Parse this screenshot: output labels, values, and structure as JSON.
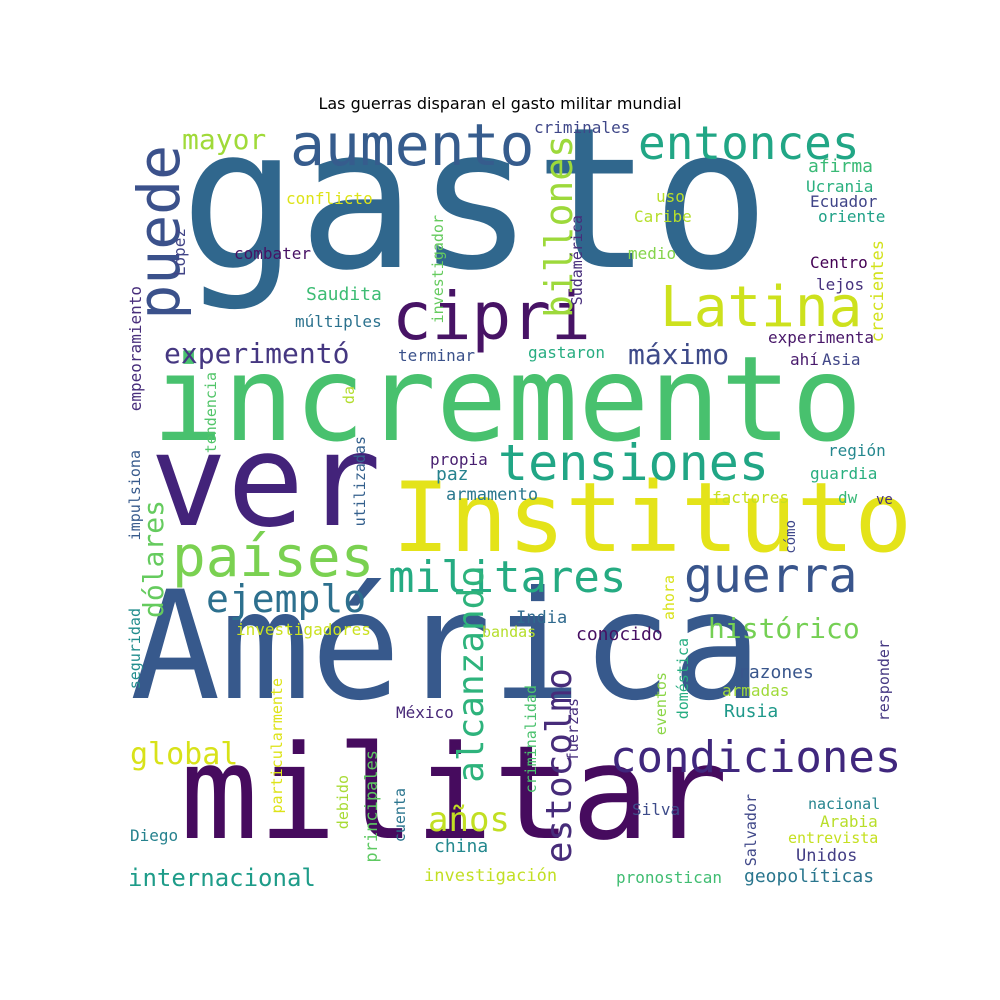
{
  "figure": {
    "title": "Las guerras disparan el gasto militar mundial"
  },
  "cloud": {
    "words": [
      {
        "text": "gasto",
        "color": "#30678d"
      },
      {
        "text": "incremento",
        "color": "#48c16e"
      },
      {
        "text": "ver",
        "color": "#43237a"
      },
      {
        "text": "Instituto",
        "color": "#e4e319"
      },
      {
        "text": "América",
        "color": "#37598c"
      },
      {
        "text": "militar",
        "color": "#460b5e"
      },
      {
        "text": "aumento",
        "color": "#365c8d"
      },
      {
        "text": "entonces",
        "color": "#21a685"
      },
      {
        "text": "cipri",
        "color": "#471365"
      },
      {
        "text": "Latina",
        "color": "#cde11d"
      },
      {
        "text": "tensiones",
        "color": "#21a685"
      },
      {
        "text": "países",
        "color": "#7ad151"
      },
      {
        "text": "militares",
        "color": "#25ab82"
      },
      {
        "text": "guerra",
        "color": "#39558c"
      },
      {
        "text": "condiciones",
        "color": "#40277d"
      },
      {
        "text": "puede",
        "color": "#3b518b"
      },
      {
        "text": "billones",
        "color": "#9dd93b"
      },
      {
        "text": "ejemplo",
        "color": "#2d708e"
      },
      {
        "text": "experimentó",
        "color": "#453781"
      },
      {
        "text": "máximo",
        "color": "#3e4a89"
      },
      {
        "text": "histórico",
        "color": "#75d054"
      },
      {
        "text": "alcanzando",
        "color": "#2eb37c"
      },
      {
        "text": "estocolmo",
        "color": "#472c7a"
      },
      {
        "text": "global",
        "color": "#d8e219"
      },
      {
        "text": "internacional",
        "color": "#1e9c89"
      },
      {
        "text": "años",
        "color": "#c2df23"
      },
      {
        "text": "mayor",
        "color": "#a0da39"
      },
      {
        "text": "dólares",
        "color": "#65cb5e"
      },
      {
        "text": "criminales",
        "color": "#3f4788"
      },
      {
        "text": "afirma",
        "color": "#3aba76"
      },
      {
        "text": "Ucrania",
        "color": "#2ab07f"
      },
      {
        "text": "Ecuador",
        "color": "#404588"
      },
      {
        "text": "oriente",
        "color": "#1fa187"
      },
      {
        "text": "conflicto",
        "color": "#dde318"
      },
      {
        "text": "uso",
        "color": "#b8de29"
      },
      {
        "text": "Caribe",
        "color": "#b5de2b"
      },
      {
        "text": "López",
        "color": "#414487"
      },
      {
        "text": "combater",
        "color": "#471164"
      },
      {
        "text": "investigador",
        "color": "#65cb5e"
      },
      {
        "text": "Sudamérica",
        "color": "#472d7b"
      },
      {
        "text": "medio",
        "color": "#84d44b"
      },
      {
        "text": "Centro",
        "color": "#440154"
      },
      {
        "text": "lejos",
        "color": "#46327e"
      },
      {
        "text": "crecientes",
        "color": "#d2e21b"
      },
      {
        "text": "Saudita",
        "color": "#3dbc74"
      },
      {
        "text": "múltiples",
        "color": "#2c728e"
      },
      {
        "text": "empeoramiento",
        "color": "#472d7b"
      },
      {
        "text": "experimenta",
        "color": "#481769"
      },
      {
        "text": "terminar",
        "color": "#3b528b"
      },
      {
        "text": "gastaron",
        "color": "#27ad81"
      },
      {
        "text": "ahí",
        "color": "#481a6c"
      },
      {
        "text": "Asia",
        "color": "#404688"
      },
      {
        "text": "tendencia",
        "color": "#52c569"
      },
      {
        "text": "da",
        "color": "#b2dd2d"
      },
      {
        "text": "región",
        "color": "#24878e"
      },
      {
        "text": "propia",
        "color": "#481f70"
      },
      {
        "text": "paz",
        "color": "#26828e"
      },
      {
        "text": "guardia",
        "color": "#29af7f"
      },
      {
        "text": "impulsiona",
        "color": "#375a8c"
      },
      {
        "text": "utilizadas",
        "color": "#34608d"
      },
      {
        "text": "armamento",
        "color": "#2a788e"
      },
      {
        "text": "dw",
        "color": "#38b977"
      },
      {
        "text": "factores",
        "color": "#c8e020"
      },
      {
        "text": "ve",
        "color": "#46307e"
      },
      {
        "text": "cómo",
        "color": "#3f4889"
      },
      {
        "text": "seguridad",
        "color": "#228d8d"
      },
      {
        "text": "investigadores",
        "color": "#cae11f"
      },
      {
        "text": "bandas",
        "color": "#b5de2b"
      },
      {
        "text": "ahora",
        "color": "#d8e219"
      },
      {
        "text": "India",
        "color": "#306a8e"
      },
      {
        "text": "conocido",
        "color": "#471063"
      },
      {
        "text": "razones",
        "color": "#39568c"
      },
      {
        "text": "armadas",
        "color": "#a0da39"
      },
      {
        "text": "Rusia",
        "color": "#1f998a"
      },
      {
        "text": "responder",
        "color": "#453882"
      },
      {
        "text": "particularmente",
        "color": "#dde318"
      },
      {
        "text": "México",
        "color": "#482878"
      },
      {
        "text": "criminalidad",
        "color": "#4ac16d"
      },
      {
        "text": "fuerzas",
        "color": "#472f7d"
      },
      {
        "text": "doméstica",
        "color": "#26ad81"
      },
      {
        "text": "eventos",
        "color": "#8bd646"
      },
      {
        "text": "principales",
        "color": "#5ec962"
      },
      {
        "text": "debido",
        "color": "#a8db34"
      },
      {
        "text": "cuenta",
        "color": "#2b758e"
      },
      {
        "text": "china",
        "color": "#23888e"
      },
      {
        "text": "Silva",
        "color": "#3e4c8a"
      },
      {
        "text": "Salvador",
        "color": "#3f4788"
      },
      {
        "text": "nacional",
        "color": "#25848e"
      },
      {
        "text": "Arabia",
        "color": "#b8de29"
      },
      {
        "text": "entrevista",
        "color": "#c5e021"
      },
      {
        "text": "Unidos",
        "color": "#433e85"
      },
      {
        "text": "Diego",
        "color": "#26828e"
      },
      {
        "text": "investigación",
        "color": "#c2df23"
      },
      {
        "text": "pronostican",
        "color": "#40bd72"
      },
      {
        "text": "geopolíticas",
        "color": "#2a768e"
      }
    ]
  }
}
